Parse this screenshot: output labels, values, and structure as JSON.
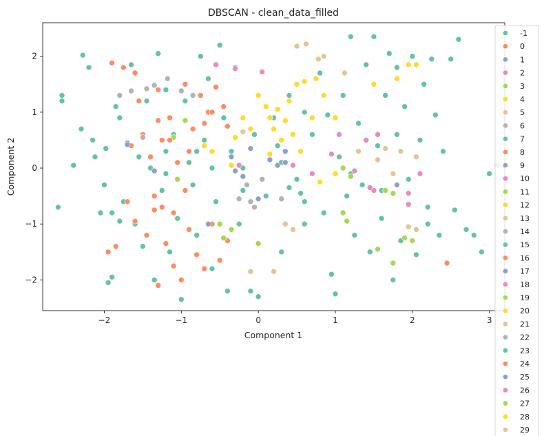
{
  "chart_data": {
    "type": "scatter",
    "title": "DBSCAN - clean_data_filled",
    "xlabel": "Component 1",
    "ylabel": "Component 2",
    "xlim": [
      -2.8,
      3.2
    ],
    "ylim": [
      -2.55,
      2.6
    ],
    "xticks": [
      -2,
      -1,
      0,
      1,
      2,
      3
    ],
    "yticks": [
      -2,
      -1,
      0,
      1,
      2
    ],
    "grid": false,
    "legend_placement": "right",
    "legend_labels": [
      "-1",
      "0",
      "1",
      "2",
      "3",
      "4",
      "5",
      "6",
      "7",
      "8",
      "9",
      "10",
      "11",
      "12",
      "13",
      "14",
      "15",
      "16",
      "17",
      "18",
      "19",
      "20",
      "21",
      "22",
      "23",
      "24",
      "25",
      "26",
      "27",
      "28",
      "29"
    ],
    "palette": [
      "#66c2a5",
      "#fc8d62",
      "#8da0cb",
      "#e78ac3",
      "#a6d854",
      "#ffd92f",
      "#e5c494",
      "#b3b3b3"
    ],
    "series": [
      {
        "name": "-1",
        "points": [
          [
            -2.55,
            1.3
          ],
          [
            -2.55,
            1.2
          ],
          [
            -2.6,
            -0.7
          ],
          [
            -2.4,
            0.05
          ],
          [
            -2.3,
            0.7
          ],
          [
            -2.28,
            2.02
          ],
          [
            -2.2,
            1.8
          ],
          [
            -2.15,
            0.5
          ],
          [
            -2.12,
            0.2
          ],
          [
            -2.05,
            -0.8
          ],
          [
            -2.0,
            -0.3
          ],
          [
            -1.98,
            0.35
          ],
          [
            -1.95,
            -2.05
          ],
          [
            -1.9,
            -1.95
          ],
          [
            -1.85,
            1.1
          ],
          [
            -1.8,
            0.9
          ],
          [
            -1.75,
            -0.6
          ],
          [
            -1.7,
            0.45
          ],
          [
            -1.65,
            1.85
          ],
          [
            -1.6,
            -1.0
          ],
          [
            -1.55,
            0.2
          ],
          [
            -1.5,
            -1.4
          ],
          [
            -1.45,
            1.2
          ],
          [
            -1.4,
            0.0
          ],
          [
            -1.35,
            -2.0
          ],
          [
            -1.3,
            2.05
          ],
          [
            -1.25,
            -0.4
          ],
          [
            -1.2,
            1.4
          ],
          [
            -1.15,
            -1.5
          ],
          [
            -1.1,
            0.6
          ],
          [
            -1.05,
            -0.9
          ],
          [
            -1.0,
            -2.35
          ],
          [
            -0.95,
            1.2
          ],
          [
            -0.9,
            0.1
          ],
          [
            -0.85,
            -0.3
          ],
          [
            -0.8,
            -1.2
          ],
          [
            -0.75,
            2.0
          ],
          [
            -0.7,
            0.5
          ],
          [
            -0.65,
            1.6
          ],
          [
            -0.6,
            -1.8
          ],
          [
            -0.55,
            -0.6
          ],
          [
            -0.5,
            2.2
          ],
          [
            -0.45,
            0.9
          ],
          [
            -0.4,
            -2.2
          ],
          [
            -0.35,
            0.3
          ],
          [
            -0.3,
            1.8
          ],
          [
            -0.25,
            -1.0
          ],
          [
            -0.2,
            0.0
          ],
          [
            -0.1,
            -2.2
          ],
          [
            0.0,
            -2.3
          ],
          [
            0.1,
            -0.5
          ],
          [
            0.2,
            0.9
          ],
          [
            0.3,
            -1.5
          ],
          [
            0.4,
            1.3
          ],
          [
            0.5,
            -0.2
          ],
          [
            0.6,
            -1.0
          ],
          [
            0.7,
            0.6
          ],
          [
            0.8,
            1.7
          ],
          [
            0.85,
            -0.8
          ],
          [
            0.9,
            0.95
          ],
          [
            0.95,
            -1.9
          ],
          [
            1.0,
            -2.25
          ],
          [
            1.05,
            0.2
          ],
          [
            1.1,
            1.3
          ],
          [
            1.15,
            -0.5
          ],
          [
            1.2,
            2.35
          ],
          [
            1.25,
            -1.2
          ],
          [
            1.3,
            0.8
          ],
          [
            1.35,
            -0.3
          ],
          [
            1.4,
            1.85
          ],
          [
            1.45,
            -1.5
          ],
          [
            1.5,
            2.35
          ],
          [
            1.55,
            0.4
          ],
          [
            1.6,
            -0.9
          ],
          [
            1.65,
            1.3
          ],
          [
            1.7,
            2.05
          ],
          [
            1.75,
            -2.0
          ],
          [
            1.8,
            0.6
          ],
          [
            1.85,
            -1.3
          ],
          [
            1.9,
            1.1
          ],
          [
            1.95,
            -0.2
          ],
          [
            2.0,
            2.0
          ],
          [
            2.05,
            -1.55
          ],
          [
            2.1,
            0.5
          ],
          [
            2.15,
            1.5
          ],
          [
            2.2,
            -0.7
          ],
          [
            2.25,
            1.95
          ],
          [
            2.3,
            0.95
          ],
          [
            2.35,
            -1.2
          ],
          [
            2.4,
            0.3
          ],
          [
            2.5,
            1.95
          ],
          [
            2.55,
            -0.75
          ],
          [
            2.6,
            2.3
          ],
          [
            2.7,
            -1.1
          ],
          [
            2.8,
            -1.2
          ],
          [
            2.9,
            -1.5
          ],
          [
            3.0,
            -0.1
          ],
          [
            3.1,
            0.05
          ],
          [
            -1.9,
            -0.8
          ],
          [
            -0.6,
            0.0
          ],
          [
            0.3,
            0.1
          ],
          [
            1.2,
            -0.1
          ],
          [
            -0.2,
            -0.4
          ],
          [
            0.6,
            -0.6
          ],
          [
            1.6,
            -0.4
          ],
          [
            -1.2,
            -0.1
          ],
          [
            0.0,
            1.3
          ],
          [
            -0.8,
            0.3
          ]
        ]
      },
      {
        "name": "0",
        "points": [
          [
            -1.9,
            1.88
          ],
          [
            -1.75,
            1.8
          ],
          [
            -1.65,
            0.4
          ],
          [
            -1.6,
            -0.95
          ],
          [
            -1.55,
            1.2
          ],
          [
            -1.5,
            0.6
          ],
          [
            -1.45,
            -1.2
          ],
          [
            -1.4,
            0.2
          ],
          [
            -1.35,
            -0.5
          ],
          [
            -1.3,
            1.4
          ],
          [
            -1.25,
            0.5
          ],
          [
            -1.2,
            -1.35
          ],
          [
            -1.15,
            0.9
          ],
          [
            -1.1,
            -0.8
          ],
          [
            -1.05,
            0.1
          ],
          [
            -1.0,
            -2.0
          ],
          [
            -0.95,
            1.5
          ],
          [
            -0.9,
            -1.1
          ],
          [
            -0.85,
            0.7
          ],
          [
            -0.8,
            -1.55
          ],
          [
            -0.75,
            1.3
          ],
          [
            -0.7,
            -1.8
          ],
          [
            -0.65,
            1.0
          ],
          [
            -0.6,
            -1.0
          ],
          [
            -0.55,
            1.45
          ],
          [
            -0.5,
            -1.65
          ],
          [
            -0.45,
            1.1
          ],
          [
            -0.4,
            -1.3
          ],
          [
            -1.6,
            1.7
          ],
          [
            -1.7,
            -0.6
          ],
          [
            -1.85,
            -1.4
          ],
          [
            -1.95,
            -1.5
          ],
          [
            -1.3,
            -2.1
          ],
          [
            -1.1,
            -1.75
          ],
          [
            -0.9,
            0.3
          ],
          [
            -0.7,
            0.8
          ]
        ]
      },
      {
        "name": "1",
        "points": [
          [
            -1.7,
            0.42
          ],
          [
            -1.35,
            -0.05
          ],
          [
            -0.65,
            -1.0
          ],
          [
            0.35,
            0.3
          ],
          [
            1.8,
            -0.3
          ],
          [
            0.0,
            -0.55
          ],
          [
            -0.1,
            0.35
          ]
        ]
      },
      {
        "name": "2",
        "points": [
          [
            -0.55,
            1.85
          ],
          [
            -0.3,
            1.78
          ],
          [
            0.05,
            1.72
          ],
          [
            0.45,
            0.05
          ],
          [
            0.95,
            0.25
          ],
          [
            1.5,
            -0.4
          ],
          [
            1.95,
            -0.65
          ],
          [
            2.1,
            -0.1
          ],
          [
            -0.25,
            0.05
          ],
          [
            0.7,
            -0.1
          ]
        ]
      },
      {
        "name": "3",
        "points": [
          [
            -1.1,
            0.55
          ],
          [
            -0.95,
            0.85
          ],
          [
            -0.5,
            -1.0
          ],
          [
            -0.45,
            -1.25
          ],
          [
            -0.35,
            -1.1
          ],
          [
            1.1,
            -0.8
          ],
          [
            1.15,
            -0.95
          ],
          [
            1.55,
            -1.45
          ],
          [
            1.75,
            -1.7
          ],
          [
            -1.05,
            -0.2
          ],
          [
            0.0,
            -1.35
          ]
        ]
      },
      {
        "name": "4",
        "points": [
          [
            0.0,
            1.3
          ],
          [
            0.1,
            1.1
          ],
          [
            0.15,
            0.9
          ],
          [
            0.2,
            0.7
          ],
          [
            0.25,
            1.05
          ],
          [
            0.3,
            0.5
          ],
          [
            0.35,
            0.85
          ],
          [
            0.4,
            1.2
          ],
          [
            0.45,
            0.6
          ],
          [
            0.5,
            1.5
          ],
          [
            0.55,
            0.3
          ],
          [
            0.6,
            1.55
          ],
          [
            0.7,
            0.9
          ],
          [
            0.75,
            1.6
          ],
          [
            0.85,
            1.3
          ],
          [
            1.0,
            0.9
          ],
          [
            1.5,
            1.5
          ],
          [
            1.8,
            1.6
          ],
          [
            1.95,
            1.85
          ],
          [
            2.05,
            1.85
          ],
          [
            -0.1,
            0.7
          ],
          [
            -0.2,
            0.9
          ],
          [
            -0.3,
            0.55
          ]
        ]
      },
      {
        "name": "5",
        "points": [
          [
            0.5,
            2.18
          ],
          [
            0.62,
            2.22
          ],
          [
            0.78,
            1.95
          ],
          [
            0.85,
            2.0
          ],
          [
            1.12,
            1.7
          ],
          [
            -0.1,
            -1.85
          ],
          [
            0.2,
            -1.85
          ],
          [
            1.65,
            0.35
          ],
          [
            1.75,
            -0.1
          ],
          [
            1.85,
            0.3
          ],
          [
            2.05,
            0.2
          ],
          [
            -0.2,
            0.65
          ]
        ]
      },
      {
        "name": "6",
        "points": [
          [
            -1.8,
            1.3
          ],
          [
            -1.65,
            1.38
          ],
          [
            -1.45,
            1.42
          ],
          [
            -1.35,
            1.48
          ],
          [
            -1.18,
            1.6
          ],
          [
            -1.0,
            1.38
          ],
          [
            -0.85,
            1.3
          ],
          [
            -0.1,
            -0.6
          ],
          [
            0.3,
            -0.55
          ],
          [
            -1.5,
            0.55
          ]
        ]
      },
      {
        "name": "7",
        "points": [
          [
            -1.8,
            -0.95
          ],
          [
            -1.2,
            0.3
          ],
          [
            0.6,
            1.0
          ],
          [
            1.8,
            1.8
          ],
          [
            2.2,
            -1.0
          ]
        ]
      },
      {
        "name": "8",
        "points": [
          [
            -1.3,
            0.85
          ],
          [
            -1.15,
            0.5
          ],
          [
            -0.95,
            -0.4
          ],
          [
            2.45,
            -1.7
          ]
        ]
      },
      {
        "name": "9",
        "points": [
          [
            -0.35,
            0.2
          ],
          [
            0.25,
            0.05
          ]
        ]
      },
      {
        "name": "10",
        "points": [
          [
            1.25,
            -0.05
          ],
          [
            1.95,
            -0.45
          ]
        ]
      },
      {
        "name": "11",
        "points": [
          [
            1.1,
            -0.0
          ],
          [
            1.2,
            -0.15
          ]
        ]
      },
      {
        "name": "12",
        "points": [
          [
            -0.35,
            0.05
          ],
          [
            0.15,
            0.25
          ]
        ]
      },
      {
        "name": "13",
        "points": [
          [
            1.3,
            0.3
          ],
          [
            1.55,
            0.15
          ]
        ]
      },
      {
        "name": "14",
        "points": [
          [
            -0.15,
            -0.3
          ],
          [
            0.05,
            -0.2
          ]
        ]
      },
      {
        "name": "15",
        "points": [
          [
            -0.05,
            0.6
          ],
          [
            0.25,
            0.4
          ]
        ]
      },
      {
        "name": "16",
        "points": [
          [
            -0.6,
            1.0
          ],
          [
            -0.4,
            0.75
          ]
        ]
      },
      {
        "name": "17",
        "points": [
          [
            0.15,
            0.15
          ],
          [
            0.35,
            0.1
          ]
        ]
      },
      {
        "name": "18",
        "points": [
          [
            1.05,
            0.6
          ],
          [
            1.45,
            -0.35
          ]
        ]
      },
      {
        "name": "19",
        "points": [
          [
            1.65,
            -0.4
          ],
          [
            1.75,
            -0.45
          ]
        ]
      },
      {
        "name": "20",
        "points": [
          [
            0.8,
            -0.25
          ],
          [
            1.0,
            -0.1
          ]
        ]
      },
      {
        "name": "21",
        "points": [
          [
            1.95,
            -1.05
          ],
          [
            2.05,
            -1.1
          ]
        ]
      },
      {
        "name": "22",
        "points": [
          [
            -0.25,
            -0.55
          ],
          [
            -0.05,
            -0.7
          ]
        ]
      },
      {
        "name": "23",
        "points": [
          [
            0.4,
            -0.35
          ],
          [
            0.55,
            -0.45
          ]
        ]
      },
      {
        "name": "24",
        "points": [
          [
            -1.35,
            -0.75
          ],
          [
            -1.25,
            -0.7
          ]
        ]
      },
      {
        "name": "25",
        "points": [
          [
            -0.3,
            -0.05
          ],
          [
            -0.2,
            -0.15
          ]
        ]
      },
      {
        "name": "26",
        "points": [
          [
            1.4,
            0.5
          ],
          [
            1.55,
            0.6
          ]
        ]
      },
      {
        "name": "27",
        "points": [
          [
            1.9,
            -1.25
          ],
          [
            2.0,
            -1.3
          ]
        ]
      },
      {
        "name": "28",
        "points": [
          [
            -0.7,
            0.4
          ],
          [
            -0.6,
            0.3
          ]
        ]
      },
      {
        "name": "29",
        "points": [
          [
            0.35,
            -1.0
          ],
          [
            0.45,
            -1.1
          ]
        ]
      }
    ]
  }
}
